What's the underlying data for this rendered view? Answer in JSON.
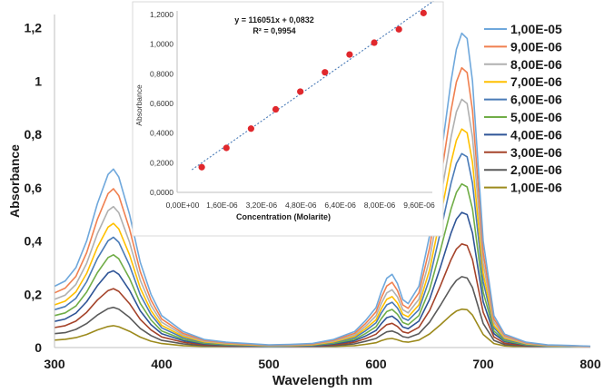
{
  "chart_data": [
    {
      "type": "line",
      "xlabel": "Wavelength nm",
      "ylabel": "Absorbance",
      "xlim": [
        300,
        800
      ],
      "ylim": [
        0,
        1.25
      ],
      "xticks": [
        "300",
        "400",
        "500",
        "600",
        "700",
        "800"
      ],
      "yticks": [
        "0",
        "0,2",
        "0,4",
        "0,6",
        "0,8",
        "1",
        "1,2"
      ],
      "legend_position": "right",
      "x": [
        300,
        310,
        320,
        330,
        340,
        350,
        355,
        360,
        370,
        380,
        390,
        400,
        420,
        440,
        460,
        480,
        500,
        520,
        540,
        560,
        580,
        590,
        600,
        605,
        610,
        615,
        620,
        625,
        630,
        640,
        650,
        660,
        670,
        675,
        680,
        685,
        690,
        695,
        700,
        710,
        720,
        740,
        760,
        780,
        800
      ],
      "series": [
        {
          "name": "1,00E-05",
          "color": "#6fa8dc",
          "values": [
            0.23,
            0.25,
            0.3,
            0.4,
            0.54,
            0.65,
            0.67,
            0.64,
            0.5,
            0.32,
            0.2,
            0.12,
            0.06,
            0.03,
            0.02,
            0.015,
            0.01,
            0.012,
            0.015,
            0.03,
            0.06,
            0.1,
            0.15,
            0.21,
            0.26,
            0.275,
            0.24,
            0.18,
            0.165,
            0.23,
            0.42,
            0.7,
            1.0,
            1.12,
            1.18,
            1.16,
            1.0,
            0.7,
            0.4,
            0.12,
            0.05,
            0.02,
            0.01,
            0.008,
            0.005
          ]
        },
        {
          "name": "9,00E-06",
          "color": "#f08050",
          "values": [
            0.205,
            0.223,
            0.267,
            0.356,
            0.481,
            0.578,
            0.596,
            0.57,
            0.445,
            0.285,
            0.178,
            0.107,
            0.053,
            0.027,
            0.018,
            0.013,
            0.009,
            0.011,
            0.013,
            0.027,
            0.053,
            0.089,
            0.134,
            0.187,
            0.231,
            0.245,
            0.214,
            0.16,
            0.147,
            0.205,
            0.374,
            0.623,
            0.89,
            0.997,
            1.05,
            1.032,
            0.89,
            0.623,
            0.356,
            0.107,
            0.045,
            0.018,
            0.009,
            0.007,
            0.004
          ]
        },
        {
          "name": "8,00E-06",
          "color": "#b0b0b0",
          "values": [
            0.181,
            0.197,
            0.237,
            0.316,
            0.427,
            0.514,
            0.529,
            0.506,
            0.395,
            0.253,
            0.158,
            0.095,
            0.047,
            0.024,
            0.016,
            0.012,
            0.008,
            0.009,
            0.012,
            0.024,
            0.047,
            0.079,
            0.119,
            0.166,
            0.205,
            0.217,
            0.19,
            0.142,
            0.13,
            0.181,
            0.332,
            0.553,
            0.79,
            0.885,
            0.932,
            0.916,
            0.79,
            0.553,
            0.316,
            0.095,
            0.04,
            0.016,
            0.008,
            0.006,
            0.004
          ]
        },
        {
          "name": "7,00E-06",
          "color": "#ffc000",
          "values": [
            0.16,
            0.174,
            0.209,
            0.278,
            0.376,
            0.452,
            0.466,
            0.445,
            0.348,
            0.223,
            0.139,
            0.083,
            0.042,
            0.021,
            0.014,
            0.01,
            0.007,
            0.008,
            0.01,
            0.021,
            0.042,
            0.07,
            0.104,
            0.146,
            0.181,
            0.191,
            0.167,
            0.125,
            0.115,
            0.16,
            0.292,
            0.487,
            0.695,
            0.778,
            0.82,
            0.806,
            0.695,
            0.487,
            0.278,
            0.083,
            0.035,
            0.014,
            0.007,
            0.006,
            0.003
          ]
        },
        {
          "name": "6,00E-06",
          "color": "#4a7bb7",
          "values": [
            0.142,
            0.154,
            0.185,
            0.247,
            0.334,
            0.401,
            0.414,
            0.395,
            0.309,
            0.198,
            0.124,
            0.074,
            0.037,
            0.019,
            0.012,
            0.009,
            0.006,
            0.007,
            0.009,
            0.019,
            0.037,
            0.062,
            0.093,
            0.13,
            0.16,
            0.17,
            0.148,
            0.111,
            0.102,
            0.142,
            0.259,
            0.432,
            0.617,
            0.691,
            0.728,
            0.716,
            0.617,
            0.432,
            0.247,
            0.074,
            0.031,
            0.012,
            0.006,
            0.005,
            0.003
          ]
        },
        {
          "name": "5,00E-06",
          "color": "#70ad47",
          "values": [
            0.12,
            0.13,
            0.156,
            0.208,
            0.281,
            0.338,
            0.348,
            0.333,
            0.26,
            0.166,
            0.104,
            0.062,
            0.031,
            0.016,
            0.01,
            0.008,
            0.005,
            0.006,
            0.008,
            0.016,
            0.031,
            0.052,
            0.078,
            0.109,
            0.135,
            0.143,
            0.125,
            0.094,
            0.086,
            0.12,
            0.218,
            0.364,
            0.52,
            0.582,
            0.614,
            0.603,
            0.52,
            0.364,
            0.208,
            0.062,
            0.026,
            0.01,
            0.005,
            0.004,
            0.003
          ]
        },
        {
          "name": "4,00E-06",
          "color": "#2f5597",
          "values": [
            0.098,
            0.107,
            0.129,
            0.172,
            0.232,
            0.28,
            0.288,
            0.275,
            0.215,
            0.138,
            0.086,
            0.052,
            0.026,
            0.013,
            0.009,
            0.006,
            0.004,
            0.005,
            0.006,
            0.013,
            0.026,
            0.043,
            0.064,
            0.09,
            0.112,
            0.118,
            0.103,
            0.077,
            0.071,
            0.099,
            0.181,
            0.301,
            0.43,
            0.482,
            0.507,
            0.499,
            0.43,
            0.301,
            0.172,
            0.052,
            0.022,
            0.009,
            0.004,
            0.003,
            0.002
          ]
        },
        {
          "name": "3,00E-06",
          "color": "#a5432a",
          "values": [
            0.075,
            0.082,
            0.099,
            0.132,
            0.178,
            0.214,
            0.221,
            0.211,
            0.165,
            0.106,
            0.066,
            0.04,
            0.02,
            0.01,
            0.007,
            0.005,
            0.003,
            0.004,
            0.005,
            0.01,
            0.02,
            0.033,
            0.05,
            0.069,
            0.086,
            0.091,
            0.079,
            0.059,
            0.054,
            0.076,
            0.139,
            0.231,
            0.33,
            0.37,
            0.389,
            0.383,
            0.33,
            0.231,
            0.132,
            0.04,
            0.016,
            0.007,
            0.003,
            0.003,
            0.002
          ]
        },
        {
          "name": "2,00E-06",
          "color": "#5a5a5a",
          "values": [
            0.052,
            0.056,
            0.068,
            0.09,
            0.122,
            0.146,
            0.151,
            0.144,
            0.113,
            0.072,
            0.045,
            0.027,
            0.014,
            0.007,
            0.005,
            0.003,
            0.002,
            0.003,
            0.003,
            0.007,
            0.014,
            0.023,
            0.034,
            0.047,
            0.059,
            0.062,
            0.054,
            0.041,
            0.037,
            0.052,
            0.095,
            0.158,
            0.225,
            0.252,
            0.266,
            0.261,
            0.225,
            0.158,
            0.09,
            0.027,
            0.011,
            0.005,
            0.002,
            0.002,
            0.001
          ]
        },
        {
          "name": "1,00E-06",
          "color": "#9c8a1c",
          "values": [
            0.028,
            0.031,
            0.037,
            0.049,
            0.066,
            0.079,
            0.082,
            0.078,
            0.061,
            0.039,
            0.024,
            0.015,
            0.007,
            0.004,
            0.002,
            0.002,
            0.001,
            0.001,
            0.002,
            0.004,
            0.007,
            0.012,
            0.018,
            0.026,
            0.032,
            0.034,
            0.029,
            0.022,
            0.02,
            0.028,
            0.051,
            0.085,
            0.122,
            0.137,
            0.144,
            0.142,
            0.122,
            0.085,
            0.049,
            0.015,
            0.006,
            0.002,
            0.001,
            0.001,
            0.001
          ]
        }
      ]
    },
    {
      "type": "scatter",
      "xlabel": "Concentration (Molarite)",
      "ylabel": "Absorbance",
      "xlim": [
        0,
        1.08e-05
      ],
      "ylim": [
        0,
        1.2
      ],
      "xticks": [
        "0,00E+00",
        "1,60E-06",
        "3,20E-06",
        "4,80E-06",
        "6,40E-06",
        "8,00E-06",
        "9,60E-06"
      ],
      "yticks": [
        "0,0000",
        "0,2000",
        "0,4000",
        "0,6000",
        "0,8000",
        "1,0000",
        "1,2000"
      ],
      "x": [
        1e-06,
        2e-06,
        3e-06,
        4e-06,
        5e-06,
        6e-06,
        7e-06,
        8e-06,
        9e-06,
        1e-05
      ],
      "values": [
        0.17,
        0.3,
        0.43,
        0.56,
        0.68,
        0.81,
        0.93,
        1.01,
        1.1,
        1.21
      ],
      "point_color": "#e0282d",
      "trendline": {
        "slope": 116051,
        "intercept": 0.0832,
        "color": "#4a7bb7",
        "style": "dotted"
      },
      "equation": "y = 116051x + 0,0832",
      "r_squared": "R² = 0,9954"
    }
  ]
}
